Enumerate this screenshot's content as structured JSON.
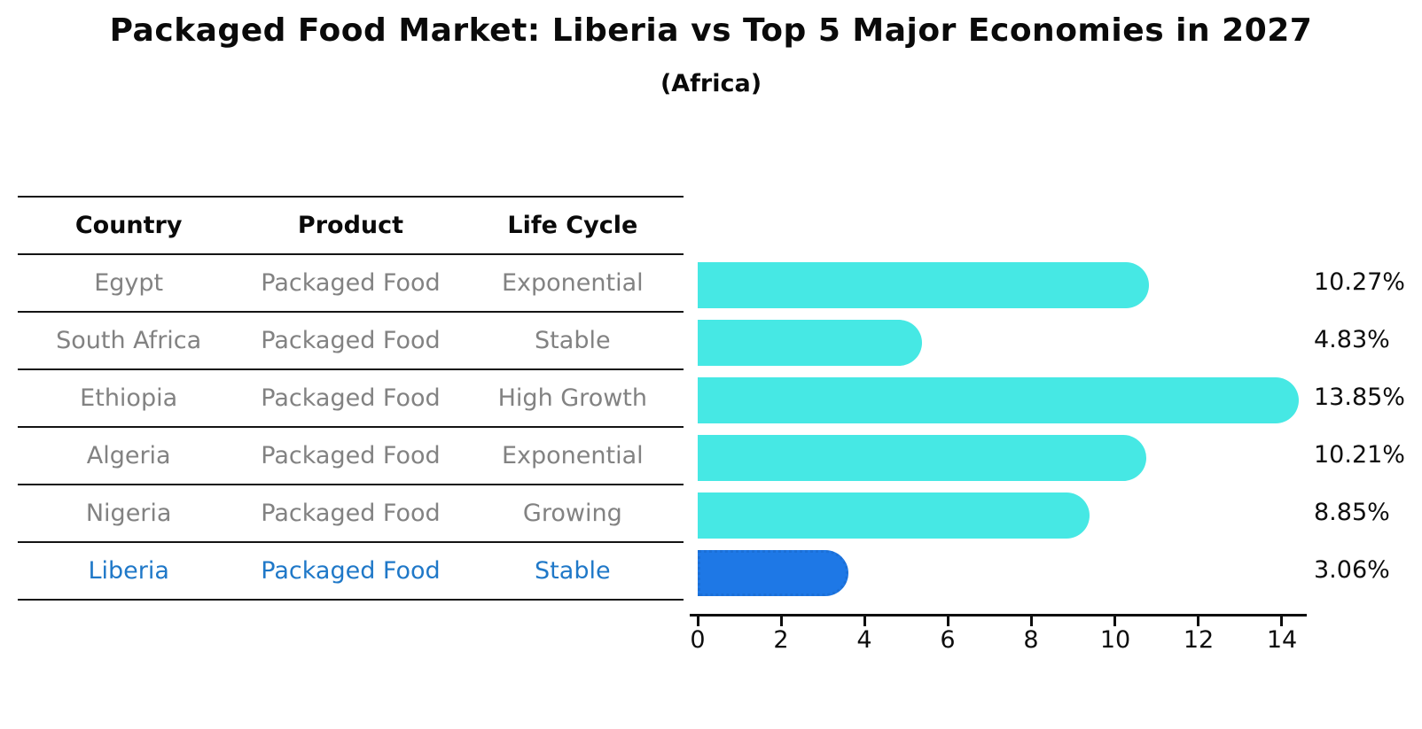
{
  "header": {
    "title": "Packaged Food Market: Liberia vs Top 5 Major Economies in 2027",
    "subtitle": "(Africa)"
  },
  "table": {
    "columns": [
      "Country",
      "Product",
      "Life Cycle"
    ],
    "rows": [
      {
        "country": "Egypt",
        "product": "Packaged Food",
        "life_cycle": "Exponential",
        "highlight": false
      },
      {
        "country": "South Africa",
        "product": "Packaged Food",
        "life_cycle": "Stable",
        "highlight": false
      },
      {
        "country": "Ethiopia",
        "product": "Packaged Food",
        "life_cycle": "High Growth",
        "highlight": false
      },
      {
        "country": "Algeria",
        "product": "Packaged Food",
        "life_cycle": "Exponential",
        "highlight": false
      },
      {
        "country": "Nigeria",
        "product": "Packaged Food",
        "life_cycle": "Growing",
        "highlight": false
      },
      {
        "country": "Liberia",
        "product": "Packaged Food",
        "life_cycle": "Stable",
        "highlight": true
      }
    ]
  },
  "chart_data": {
    "type": "bar",
    "orientation": "horizontal",
    "title": "Packaged Food Market: Liberia vs Top 5 Major Economies in 2027",
    "subtitle": "(Africa)",
    "categories": [
      "Egypt",
      "South Africa",
      "Ethiopia",
      "Algeria",
      "Nigeria",
      "Liberia"
    ],
    "values": [
      10.27,
      4.83,
      13.85,
      10.21,
      8.85,
      3.06
    ],
    "value_labels": [
      "10.27%",
      "4.83%",
      "13.85%",
      "10.21%",
      "8.85%",
      "3.06%"
    ],
    "xlabel": "",
    "ylabel": "",
    "xlim": [
      0,
      14.6
    ],
    "x_ticks": [
      0,
      2,
      4,
      6,
      8,
      10,
      12,
      14
    ],
    "grid": false,
    "legend": false,
    "bar_color": "#46e8e4",
    "highlight_color": "#1e78e6",
    "highlight_index": 5
  },
  "colors": {
    "row_text": "#828282",
    "highlight_text": "#1f78c8",
    "line": "#141414",
    "axis": "#0d0d0d"
  }
}
